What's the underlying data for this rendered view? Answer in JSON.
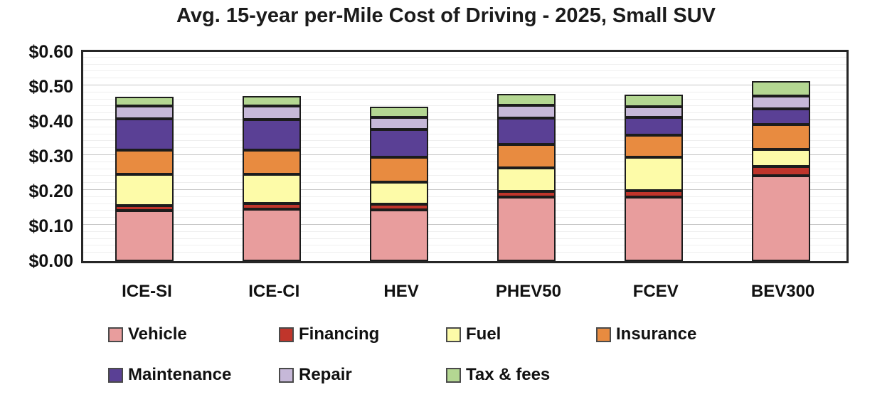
{
  "title": "Avg. 15-year per-Mile Cost of Driving - 2025, Small SUV",
  "chart_data": {
    "type": "bar",
    "stacked": true,
    "title": "Avg. 15-year per-Mile Cost of Driving - 2025, Small SUV",
    "xlabel": "",
    "ylabel": "",
    "ylim": [
      0,
      0.6
    ],
    "grid": {
      "major_step": 0.1,
      "minor_step": 0.02
    },
    "legend_position": "bottom",
    "categories": [
      "ICE-SI",
      "ICE-CI",
      "HEV",
      "PHEV50",
      "FCEV",
      "BEV300"
    ],
    "series": [
      {
        "name": "Vehicle",
        "color": "#e89d9d",
        "values": [
          0.144,
          0.148,
          0.147,
          0.183,
          0.184,
          0.245
        ]
      },
      {
        "name": "Financing",
        "color": "#c0352b",
        "values": [
          0.015,
          0.017,
          0.016,
          0.018,
          0.018,
          0.026
        ]
      },
      {
        "name": "Fuel",
        "color": "#fdfba8",
        "values": [
          0.091,
          0.084,
          0.063,
          0.066,
          0.096,
          0.05
        ]
      },
      {
        "name": "Insurance",
        "color": "#e88b40",
        "values": [
          0.069,
          0.069,
          0.071,
          0.068,
          0.063,
          0.071
        ]
      },
      {
        "name": "Maintenance",
        "color": "#5a4095",
        "values": [
          0.09,
          0.089,
          0.08,
          0.076,
          0.051,
          0.045
        ]
      },
      {
        "name": "Repair",
        "color": "#c6b8d8",
        "values": [
          0.036,
          0.038,
          0.036,
          0.036,
          0.031,
          0.037
        ]
      },
      {
        "name": "Tax & fees",
        "color": "#b4d792",
        "values": [
          0.027,
          0.028,
          0.03,
          0.033,
          0.034,
          0.042
        ]
      }
    ],
    "totals": [
      0.472,
      0.473,
      0.443,
      0.48,
      0.477,
      0.516
    ],
    "yticks": [
      {
        "label": "$0.00",
        "value": 0.0
      },
      {
        "label": "$0.10",
        "value": 0.1
      },
      {
        "label": "$0.20",
        "value": 0.2
      },
      {
        "label": "$0.30",
        "value": 0.3
      },
      {
        "label": "$0.40",
        "value": 0.4
      },
      {
        "label": "$0.50",
        "value": 0.5
      },
      {
        "label": "$0.60",
        "value": 0.6
      }
    ],
    "legend_rows": [
      [
        "Vehicle",
        "Financing",
        "Fuel",
        "Insurance"
      ],
      [
        "Maintenance",
        "Repair",
        "Tax & fees"
      ]
    ]
  }
}
